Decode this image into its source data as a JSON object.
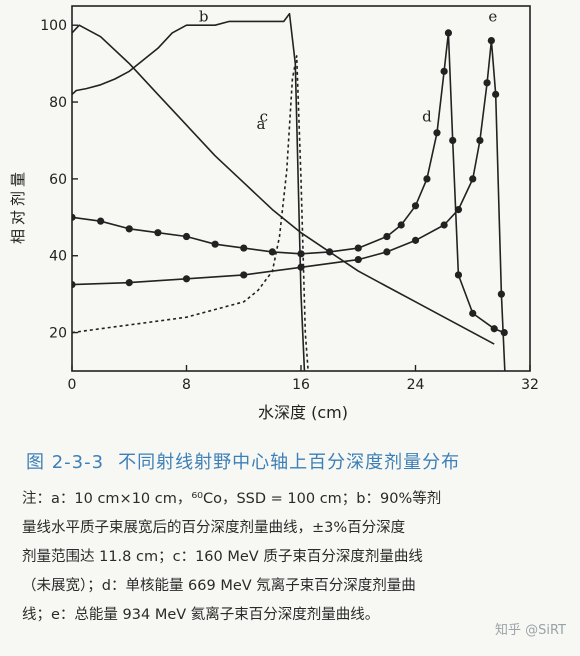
{
  "figure": {
    "number": "图 2-3-3",
    "title": "不同射线射野中心轴上百分深度剂量分布",
    "notes": [
      "注：a：10 cm×10 cm，⁶⁰Co，SSD = 100 cm；b：90%等剂",
      "量线水平质子束展宽后的百分深度剂量曲线，±3%百分深度",
      "剂量范围达 11.8 cm；c：160 MeV 质子束百分深度剂量曲线",
      "（未展宽）；d：单核能量 669 MeV 氖离子束百分深度剂量曲",
      "线；e：总能量 934 MeV 氦离子束百分深度剂量曲线。"
    ]
  },
  "watermark": "知乎 @SiRT",
  "colors": {
    "line": "#222222",
    "caption": "#3d7fb8",
    "background": "#f7f8f3"
  },
  "chart_data": {
    "type": "line",
    "xlabel": "水深度 (cm)",
    "ylabel": "相对剂量",
    "xlim": [
      0,
      32
    ],
    "ylim": [
      10,
      105
    ],
    "xticks": [
      0,
      8,
      16,
      24,
      32
    ],
    "yticks": [
      20,
      40,
      60,
      80,
      100
    ],
    "grid": false,
    "series": [
      {
        "name": "a",
        "style": "solid",
        "markers": false,
        "label_at": [
          13.2,
          73
        ],
        "x": [
          0,
          0.5,
          2,
          4,
          6,
          8,
          10,
          12,
          14,
          16,
          18,
          20,
          22,
          24,
          26,
          28,
          29.5
        ],
        "y": [
          98,
          100,
          97,
          90,
          82,
          74,
          66,
          59,
          52,
          46,
          41,
          36,
          32,
          28,
          24,
          20,
          17
        ]
      },
      {
        "name": "b",
        "style": "solid",
        "markers": false,
        "label_at": [
          9.2,
          101
        ],
        "x": [
          0,
          0.3,
          1,
          2,
          3,
          4,
          5,
          6,
          7,
          8,
          9,
          10,
          11,
          12,
          13,
          14,
          14.8,
          15.2,
          15.6,
          16,
          16.3
        ],
        "y": [
          82,
          83,
          83.5,
          84.5,
          86,
          88,
          91,
          94,
          98,
          100,
          100,
          100,
          101,
          101,
          101,
          101,
          101,
          103,
          90,
          30,
          5
        ]
      },
      {
        "name": "c",
        "style": "dashed",
        "markers": false,
        "label_at": [
          13.4,
          75
        ],
        "x": [
          0,
          2,
          4,
          6,
          8,
          10,
          12,
          13,
          14,
          14.5,
          15,
          15.4,
          15.7,
          16,
          16.3,
          16.7
        ],
        "y": [
          20,
          21,
          22,
          23,
          24,
          26,
          28,
          31,
          36,
          45,
          62,
          86,
          92,
          60,
          20,
          0
        ]
      },
      {
        "name": "d",
        "style": "solid",
        "markers": true,
        "label_at": [
          24.8,
          75
        ],
        "x": [
          0,
          2,
          4,
          6,
          8,
          10,
          12,
          14,
          16,
          18,
          20,
          22,
          23,
          24,
          24.8,
          25.5,
          26,
          26.3,
          26.6,
          27,
          28,
          29.5,
          30.2
        ],
        "y": [
          50,
          49,
          47,
          46,
          45,
          43,
          42,
          41,
          40.5,
          41,
          42,
          45,
          48,
          53,
          60,
          72,
          88,
          98,
          70,
          35,
          25,
          21,
          20
        ]
      },
      {
        "name": "e",
        "style": "solid",
        "markers": true,
        "label_at": [
          29.4,
          101
        ],
        "x": [
          0,
          4,
          8,
          12,
          16,
          20,
          22,
          24,
          26,
          27,
          28,
          28.5,
          29,
          29.3,
          29.6,
          30,
          30.3
        ],
        "y": [
          32.5,
          33,
          34,
          35,
          37,
          39,
          41,
          44,
          48,
          52,
          60,
          70,
          85,
          96,
          82,
          30,
          5
        ]
      }
    ]
  }
}
